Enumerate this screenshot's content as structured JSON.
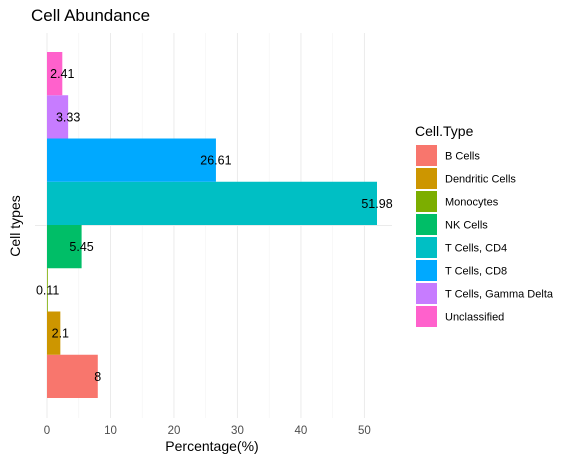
{
  "chart_data": {
    "type": "bar",
    "orientation": "horizontal",
    "position": "dodge",
    "title": "Cell Abundance",
    "xlabel": "Percentage(%)",
    "ylabel": "Cell types",
    "xlim": [
      0,
      54
    ],
    "xticks": [
      0,
      10,
      20,
      30,
      40,
      50
    ],
    "grid": true,
    "legend_position": "right",
    "legend_title": "Cell.Type",
    "series": [
      {
        "name": "B Cells",
        "value": 8,
        "label": "8",
        "color": "#F8766D"
      },
      {
        "name": "Dendritic Cells",
        "value": 2.1,
        "label": "2.1",
        "color": "#CD9600"
      },
      {
        "name": "Monocytes",
        "value": 0.11,
        "label": "0.11",
        "color": "#7CAE00"
      },
      {
        "name": "NK Cells",
        "value": 5.45,
        "label": "5.45",
        "color": "#00BE67"
      },
      {
        "name": "T Cells, CD4",
        "value": 51.98,
        "label": "51.98",
        "color": "#00BFC4"
      },
      {
        "name": "T Cells, CD8",
        "value": 26.61,
        "label": "26.61",
        "color": "#00A9FF"
      },
      {
        "name": "T Cells, Gamma Delta",
        "value": 3.33,
        "label": "3.33",
        "color": "#C77CFF"
      },
      {
        "name": "Unclassified",
        "value": 2.41,
        "label": "2.41",
        "color": "#FF61CC"
      }
    ]
  }
}
